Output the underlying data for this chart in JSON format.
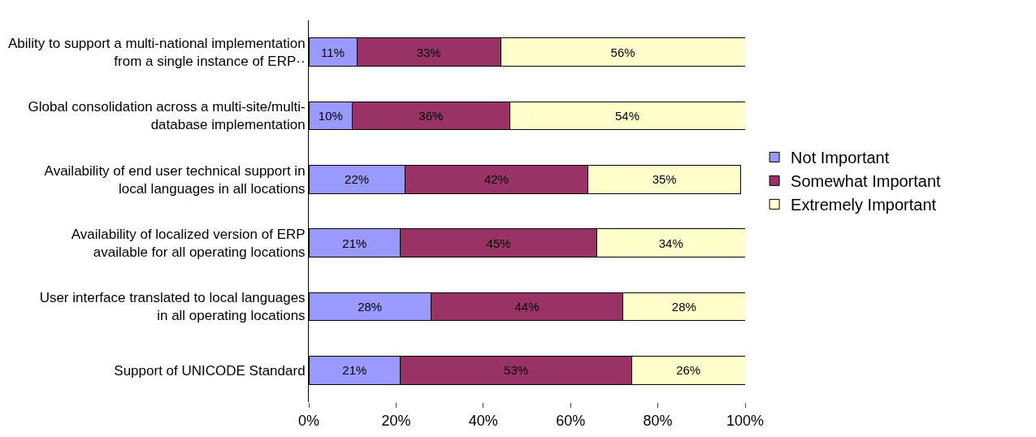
{
  "chart_data": {
    "type": "bar",
    "orientation": "horizontal",
    "stacked": true,
    "categories": [
      "Ability to support a multi-national implementation\nfrom a single instance of ERP··",
      "Global consolidation across a multi-site/multi-\ndatabase implementation",
      "Availability of end user technical support in\nlocal languages in all locations",
      "Availability of localized version of ERP\navailable for all operating locations",
      "User interface translated to local languages\nin all operating locations",
      "Support of UNICODE Standard"
    ],
    "series": [
      {
        "name": "Not Important",
        "color": "#9999ff",
        "values": [
          11,
          10,
          22,
          21,
          28,
          21
        ],
        "value_labels": [
          "11%",
          "10%",
          "22%",
          "21%",
          "28%",
          "21%"
        ]
      },
      {
        "name": "Somewhat Important",
        "color": "#993366",
        "values": [
          33,
          36,
          42,
          45,
          44,
          53
        ],
        "value_labels": [
          "33%",
          "36%",
          "42%",
          "45%",
          "44%",
          "53%"
        ]
      },
      {
        "name": "Extremely Important",
        "color": "#ffffcc",
        "values": [
          56,
          54,
          35,
          34,
          28,
          26
        ],
        "value_labels": [
          "56%",
          "54%",
          "35%",
          "34%",
          "28%",
          "26%"
        ]
      }
    ],
    "xlim": [
      0,
      100
    ],
    "xticks": [
      {
        "value": 0,
        "label": "0%"
      },
      {
        "value": 20,
        "label": "20%"
      },
      {
        "value": 40,
        "label": "40%"
      },
      {
        "value": 60,
        "label": "60%"
      },
      {
        "value": 80,
        "label": "80%"
      },
      {
        "value": 100,
        "label": "100%"
      }
    ],
    "legend": "right"
  }
}
